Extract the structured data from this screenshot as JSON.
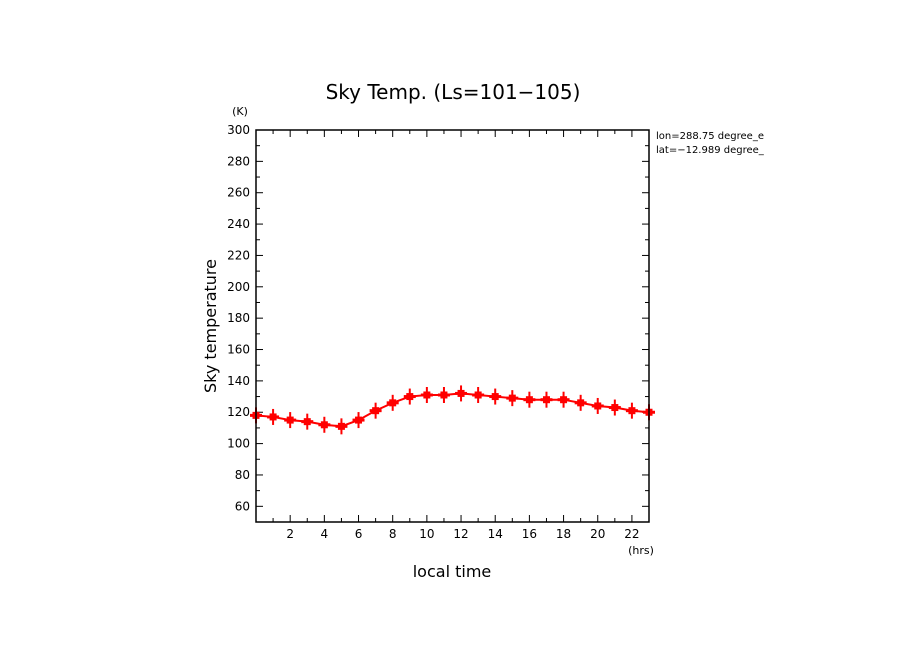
{
  "chart_data": {
    "type": "line",
    "title": "Sky Temp. (Ls=101−105)",
    "xlabel": "local time",
    "ylabel": "Sky temperature",
    "x_unit": "(hrs)",
    "y_unit": "(K)",
    "xlim": [
      0,
      23
    ],
    "ylim": [
      50,
      300
    ],
    "x_ticks": [
      2,
      4,
      6,
      8,
      10,
      12,
      14,
      16,
      18,
      20,
      22
    ],
    "y_ticks": [
      60,
      80,
      100,
      120,
      140,
      160,
      180,
      200,
      220,
      240,
      260,
      280,
      300
    ],
    "grid": false,
    "annotations": [
      "lon=288.75 degree_e",
      "lat=−12.989 degree_"
    ],
    "series": [
      {
        "color": "#ff0000",
        "marker": "cross-with-errorbar",
        "x": [
          0,
          1,
          2,
          3,
          4,
          5,
          6,
          7,
          8,
          9,
          10,
          11,
          12,
          13,
          14,
          15,
          16,
          17,
          18,
          19,
          20,
          21,
          22,
          23
        ],
        "values": [
          118,
          117,
          115,
          114,
          112,
          111,
          115,
          121,
          126,
          130,
          131,
          131,
          132,
          131,
          130,
          129,
          128,
          128,
          128,
          126,
          124,
          123,
          121,
          120
        ]
      }
    ]
  }
}
